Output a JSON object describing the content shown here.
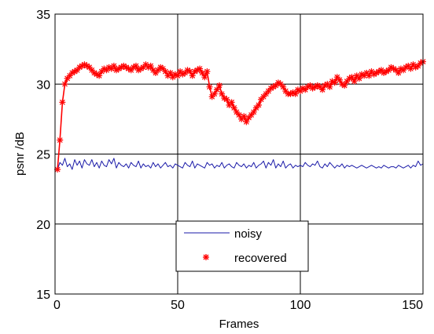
{
  "chart_data": {
    "type": "line",
    "title": "",
    "xlabel": "Frames",
    "ylabel": "psnr /dB",
    "xlim": [
      0,
      150
    ],
    "ylim": [
      15,
      35
    ],
    "xticks": [
      0,
      50,
      100,
      150
    ],
    "yticks": [
      15,
      20,
      25,
      30,
      35
    ],
    "grid": true,
    "legend": {
      "position": "bottom-center",
      "entries": [
        "noisy",
        "recovered"
      ]
    },
    "series": [
      {
        "name": "noisy",
        "color": "#1a1aa8",
        "marker": "none",
        "x": [
          1,
          2,
          3,
          4,
          5,
          6,
          7,
          8,
          9,
          10,
          11,
          12,
          13,
          14,
          15,
          16,
          17,
          18,
          19,
          20,
          21,
          22,
          23,
          24,
          25,
          26,
          27,
          28,
          29,
          30,
          31,
          32,
          33,
          34,
          35,
          36,
          37,
          38,
          39,
          40,
          41,
          42,
          43,
          44,
          45,
          46,
          47,
          48,
          49,
          50,
          51,
          52,
          53,
          54,
          55,
          56,
          57,
          58,
          59,
          60,
          61,
          62,
          63,
          64,
          65,
          66,
          67,
          68,
          69,
          70,
          71,
          72,
          73,
          74,
          75,
          76,
          77,
          78,
          79,
          80,
          81,
          82,
          83,
          84,
          85,
          86,
          87,
          88,
          89,
          90,
          91,
          92,
          93,
          94,
          95,
          96,
          97,
          98,
          99,
          100,
          101,
          102,
          103,
          104,
          105,
          106,
          107,
          108,
          109,
          110,
          111,
          112,
          113,
          114,
          115,
          116,
          117,
          118,
          119,
          120,
          121,
          122,
          123,
          124,
          125,
          126,
          127,
          128,
          129,
          130,
          131,
          132,
          133,
          134,
          135,
          136,
          137,
          138,
          139,
          140,
          141,
          142,
          143,
          144,
          145,
          146,
          147,
          148,
          149,
          150
        ],
        "values": [
          23.9,
          24.4,
          24.2,
          24.7,
          24.1,
          24.3,
          23.9,
          24.6,
          24.2,
          24.5,
          24.0,
          24.6,
          24.3,
          24.2,
          24.6,
          24.1,
          24.4,
          24.0,
          24.5,
          24.2,
          24.1,
          24.6,
          24.3,
          24.7,
          24.0,
          24.4,
          24.2,
          24.1,
          24.3,
          24.0,
          24.4,
          24.2,
          24.1,
          24.5,
          24.0,
          24.3,
          24.1,
          24.2,
          24.0,
          24.4,
          24.1,
          24.3,
          24.0,
          24.2,
          24.4,
          24.1,
          24.2,
          24.0,
          24.3,
          24.2,
          24.1,
          24.0,
          24.4,
          24.2,
          24.1,
          24.5,
          24.0,
          24.3,
          24.2,
          24.1,
          24.0,
          24.4,
          24.2,
          24.3,
          24.0,
          24.2,
          24.1,
          24.4,
          24.0,
          24.2,
          24.3,
          24.1,
          24.0,
          24.4,
          24.2,
          24.1,
          24.3,
          24.0,
          24.2,
          24.1,
          24.4,
          24.0,
          24.2,
          24.3,
          24.5,
          24.0,
          24.4,
          24.2,
          24.6,
          24.0,
          24.3,
          24.1,
          24.5,
          24.0,
          24.2,
          24.3,
          24.0,
          24.2,
          24.1,
          24.2,
          24.1,
          24.4,
          24.2,
          24.1,
          24.3,
          24.2,
          24.5,
          24.1,
          24.0,
          24.3,
          24.1,
          24.4,
          24.2,
          24.0,
          24.2,
          24.1,
          24.3,
          24.0,
          24.2,
          24.1,
          24.2,
          24.1,
          24.0,
          24.1,
          24.2,
          24.1,
          24.0,
          24.1,
          24.2,
          24.1,
          24.0,
          24.1,
          24.0,
          24.2,
          24.1,
          24.0,
          24.1,
          24.1,
          24.0,
          24.2,
          24.1,
          24.0,
          24.1,
          24.2,
          24.0,
          24.2,
          24.1,
          24.5,
          24.2,
          24.3
        ]
      },
      {
        "name": "recovered",
        "color": "#ff0000",
        "marker": "*",
        "x": [
          1,
          2,
          3,
          4,
          5,
          6,
          7,
          8,
          9,
          10,
          11,
          12,
          13,
          14,
          15,
          16,
          17,
          18,
          19,
          20,
          21,
          22,
          23,
          24,
          25,
          26,
          27,
          28,
          29,
          30,
          31,
          32,
          33,
          34,
          35,
          36,
          37,
          38,
          39,
          40,
          41,
          42,
          43,
          44,
          45,
          46,
          47,
          48,
          49,
          50,
          51,
          52,
          53,
          54,
          55,
          56,
          57,
          58,
          59,
          60,
          61,
          62,
          63,
          64,
          65,
          66,
          67,
          68,
          69,
          70,
          71,
          72,
          73,
          74,
          75,
          76,
          77,
          78,
          79,
          80,
          81,
          82,
          83,
          84,
          85,
          86,
          87,
          88,
          89,
          90,
          91,
          92,
          93,
          94,
          95,
          96,
          97,
          98,
          99,
          100,
          101,
          102,
          103,
          104,
          105,
          106,
          107,
          108,
          109,
          110,
          111,
          112,
          113,
          114,
          115,
          116,
          117,
          118,
          119,
          120,
          121,
          122,
          123,
          124,
          125,
          126,
          127,
          128,
          129,
          130,
          131,
          132,
          133,
          134,
          135,
          136,
          137,
          138,
          139,
          140,
          141,
          142,
          143,
          144,
          145,
          146,
          147,
          148,
          149,
          150
        ],
        "values": [
          23.9,
          26.0,
          28.7,
          30.0,
          30.4,
          30.6,
          30.8,
          30.9,
          31.0,
          31.2,
          31.3,
          31.4,
          31.3,
          31.2,
          31.0,
          30.8,
          30.7,
          30.6,
          30.9,
          31.1,
          31.0,
          31.2,
          31.1,
          31.3,
          31.0,
          31.1,
          31.2,
          31.3,
          31.2,
          31.1,
          31.0,
          31.2,
          31.3,
          31.0,
          31.1,
          31.2,
          31.4,
          31.2,
          31.3,
          31.0,
          30.8,
          31.0,
          31.2,
          31.1,
          30.9,
          30.6,
          30.8,
          30.5,
          30.7,
          30.6,
          30.9,
          30.7,
          30.8,
          31.0,
          30.9,
          30.6,
          30.9,
          31.0,
          31.1,
          30.8,
          30.5,
          30.9,
          29.8,
          29.1,
          29.3,
          29.6,
          29.9,
          29.3,
          29.0,
          28.9,
          28.5,
          28.7,
          28.3,
          28.0,
          27.8,
          27.5,
          27.7,
          27.3,
          27.6,
          27.8,
          28.0,
          28.3,
          28.5,
          28.9,
          29.1,
          29.3,
          29.5,
          29.7,
          29.8,
          29.9,
          30.1,
          30.0,
          29.8,
          29.5,
          29.3,
          29.3,
          29.4,
          29.3,
          29.6,
          29.5,
          29.7,
          29.6,
          29.8,
          29.9,
          29.7,
          29.8,
          29.9,
          29.8,
          29.6,
          29.9,
          30.0,
          29.8,
          30.2,
          30.1,
          30.5,
          30.3,
          30.0,
          29.9,
          30.2,
          30.4,
          30.5,
          30.2,
          30.6,
          30.4,
          30.7,
          30.6,
          30.8,
          30.6,
          30.9,
          30.7,
          30.8,
          30.9,
          31.0,
          30.8,
          30.9,
          31.0,
          31.2,
          31.1,
          31.0,
          30.8,
          31.1,
          31.0,
          31.2,
          31.3,
          31.1,
          31.4,
          31.2,
          31.3,
          31.5,
          31.6
        ]
      }
    ]
  }
}
